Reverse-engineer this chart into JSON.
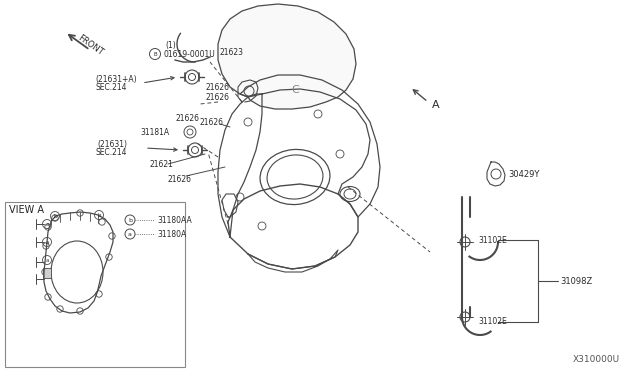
{
  "bg_color": "#ffffff",
  "line_color": "#4a4a4a",
  "text_color": "#2a2a2a",
  "diagram_id": "X310000U",
  "labels": {
    "view_a": "VIEW A",
    "31180AA": "31180AA",
    "31180A": "31180A",
    "31102E": "31102E",
    "31098Z": "31098Z",
    "30429Y": "30429Y",
    "A": "A",
    "21626": "21626",
    "21621": "21621",
    "31181A": "31181A",
    "21623": "21623",
    "FRONT": "FRONT",
    "SEC214a": "SEC.214",
    "21631": "(21631)",
    "SEC214b": "SEC.214",
    "21631A": "(21631+A)",
    "01619": "01619-0001U",
    "one": "(1)"
  },
  "font_size": 5.5,
  "font_size_label": 6.0
}
